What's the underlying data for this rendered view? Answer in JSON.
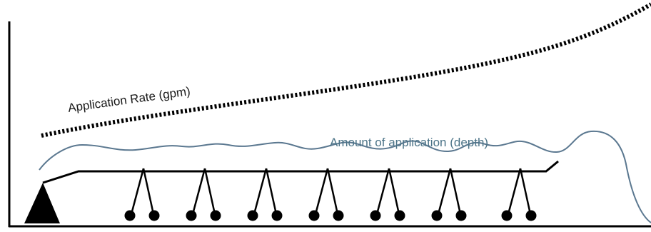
{
  "labels": {
    "application_rate": "Application Rate (gpm)",
    "application_amount": "Amount of application (depth)"
  },
  "colors": {
    "structure": "#000000",
    "depth_curve": "#5b7890",
    "depth_label": "#4b7387",
    "background": "#ffffff"
  },
  "sprinkler_drop_count": 7
}
